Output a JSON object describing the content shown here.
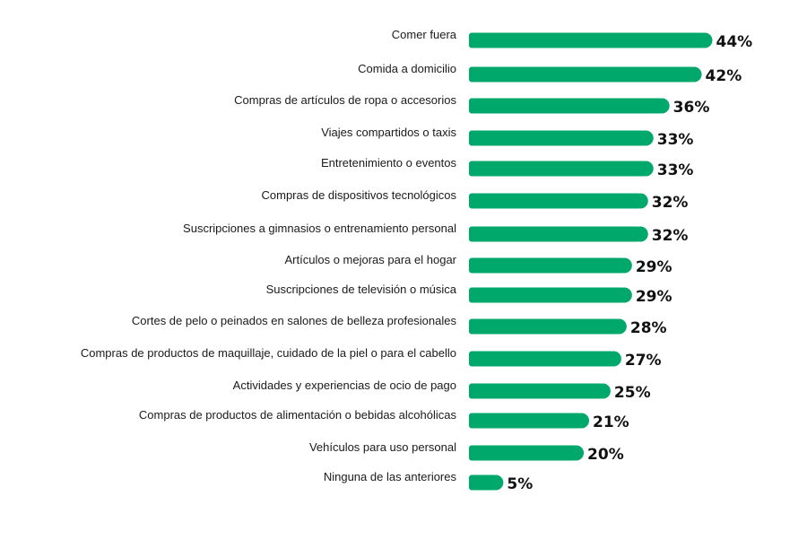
{
  "colors": {
    "bar": "#00a86b",
    "label": "#1a1a1a",
    "value": "#111111",
    "background": "#ffffff"
  },
  "chart_data": {
    "type": "bar",
    "orientation": "horizontal",
    "title": "",
    "xlabel": "",
    "ylabel": "",
    "xlim": [
      0,
      44
    ],
    "grid": false,
    "categories": [
      "Comer fuera",
      "Comida a domicilio",
      "Compras de artículos de ropa o accesorios",
      "Viajes compartidos o taxis",
      "Entretenimiento o eventos",
      "Compras de dispositivos tecnológicos",
      "Suscripciones a gimnasios o entrenamiento personal",
      "Artículos o mejoras para el hogar",
      "Suscripciones de televisión o música",
      "Cortes de pelo o peinados en salones de belleza profesionales",
      "Compras de productos de maquillaje, cuidado de la piel o para el cabello",
      "Actividades y experiencias de ocio de pago",
      "Compras de productos de alimentación o bebidas alcohólicas",
      "Vehículos para uso personal",
      "Ninguna de las anteriores"
    ],
    "values": [
      44,
      42,
      36,
      33,
      33,
      32,
      32,
      29,
      29,
      28,
      27,
      25,
      21,
      20,
      5
    ],
    "value_labels": [
      "44%",
      "42%",
      "36%",
      "33%",
      "33%",
      "32%",
      "32%",
      "29%",
      "29%",
      "28%",
      "27%",
      "25%",
      "21%",
      "20%",
      "5%"
    ]
  }
}
